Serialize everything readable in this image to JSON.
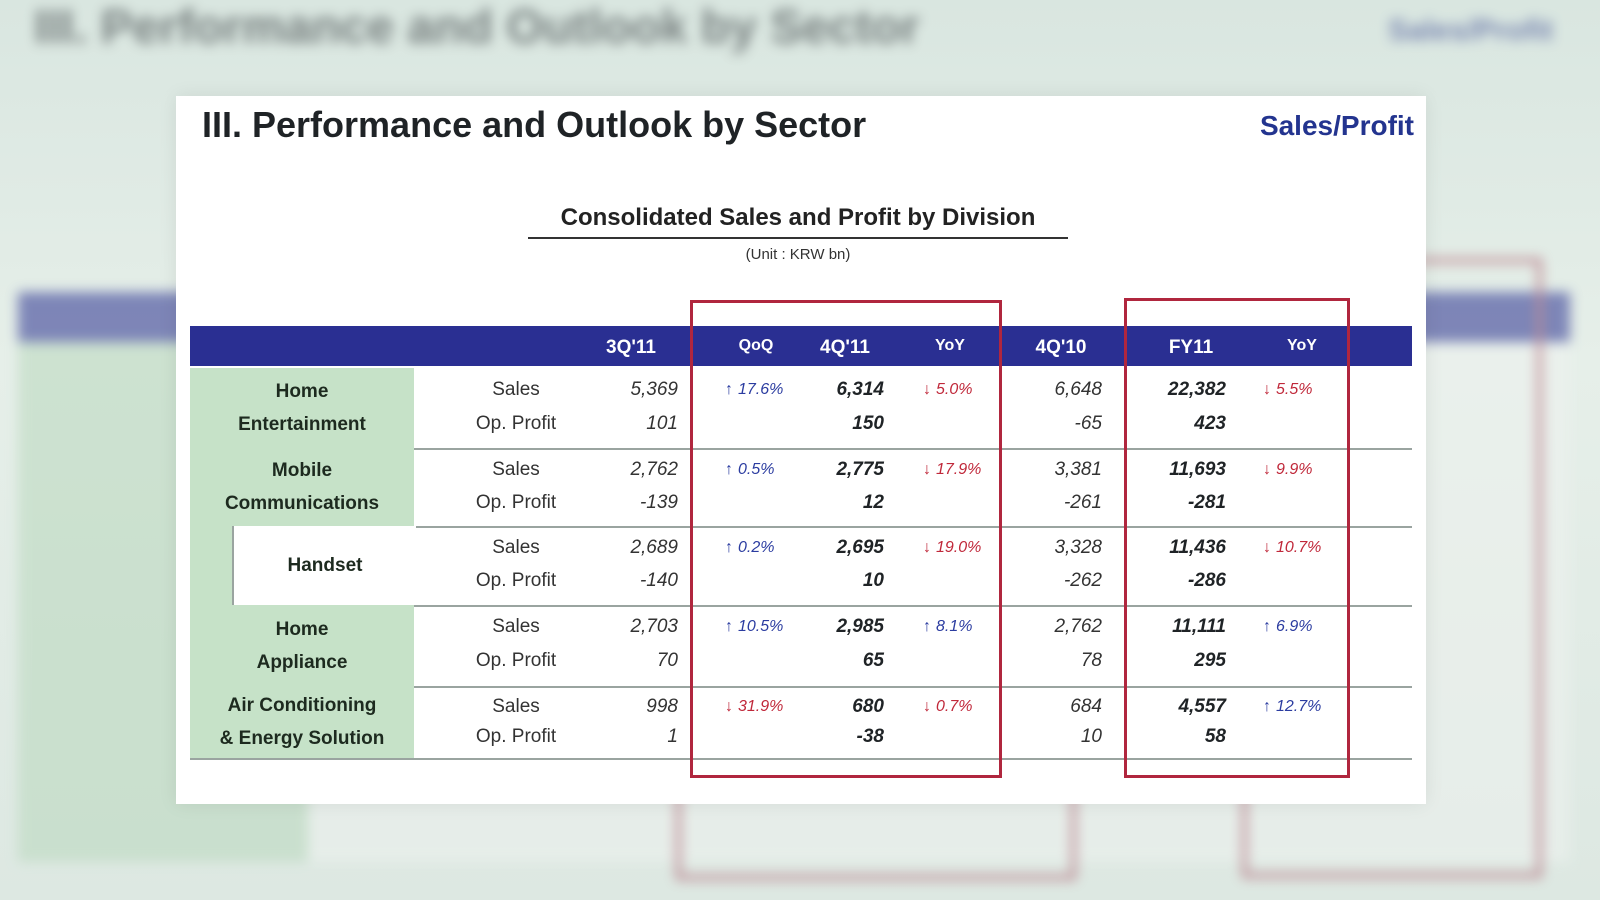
{
  "page": {
    "title": "III. Performance and Outlook by Sector",
    "link": "Sales/Profit"
  },
  "table": {
    "caption": "Consolidated Sales and Profit by Division",
    "unit": "(Unit : KRW bn)",
    "headers": {
      "q3_11": "3Q'11",
      "qoq": "QoQ",
      "q4_11": "4Q'11",
      "yoy": "YoY",
      "q4_10": "4Q'10",
      "fy11": "FY11",
      "fy_yoy": "YoY"
    },
    "metric_labels": {
      "sales": "Sales",
      "op_profit": "Op. Profit"
    },
    "rows": [
      {
        "label_line1": "Home",
        "label_line2": "Entertainment",
        "sales": {
          "q3_11": "5,369",
          "qoq": "17.6%",
          "q4_11": "6,314",
          "yoy": "5.0%",
          "q4_10": "6,648",
          "fy11": "22,382",
          "fy_yoy": "5.5%"
        },
        "op": {
          "q3_11": "101",
          "q4_11": "150",
          "q4_10": "-65",
          "fy11": "423"
        }
      },
      {
        "label_line1": "Mobile",
        "label_line2": "Communications",
        "sales": {
          "q3_11": "2,762",
          "qoq": "0.5%",
          "q4_11": "2,775",
          "yoy": "17.9%",
          "q4_10": "3,381",
          "fy11": "11,693",
          "fy_yoy": "9.9%"
        },
        "op": {
          "q3_11": "-139",
          "q4_11": "12",
          "q4_10": "-261",
          "fy11": "-281"
        }
      },
      {
        "label_line1": "Handset",
        "label_line2": "",
        "sales": {
          "q3_11": "2,689",
          "qoq": "0.2%",
          "q4_11": "2,695",
          "yoy": "19.0%",
          "q4_10": "3,328",
          "fy11": "11,436",
          "fy_yoy": "10.7%"
        },
        "op": {
          "q3_11": "-140",
          "q4_11": "10",
          "q4_10": "-262",
          "fy11": "-286"
        }
      },
      {
        "label_line1": "Home",
        "label_line2": "Appliance",
        "sales": {
          "q3_11": "2,703",
          "qoq": "10.5%",
          "q4_11": "2,985",
          "yoy": "8.1%",
          "q4_10": "2,762",
          "fy11": "11,111",
          "fy_yoy": "6.9%"
        },
        "op": {
          "q3_11": "70",
          "q4_11": "65",
          "q4_10": "78",
          "fy11": "295"
        }
      },
      {
        "label_line1": "Air Conditioning",
        "label_line2": "& Energy Solution",
        "sales": {
          "q3_11": "998",
          "qoq": "31.9%",
          "q4_11": "680",
          "yoy": "0.7%",
          "q4_10": "684",
          "fy11": "4,557",
          "fy_yoy": "12.7%"
        },
        "op": {
          "q3_11": "1",
          "q4_11": "-38",
          "q4_10": "10",
          "fy11": "58"
        }
      }
    ],
    "arrows": {
      "up": "↑",
      "down": "↓"
    }
  }
}
